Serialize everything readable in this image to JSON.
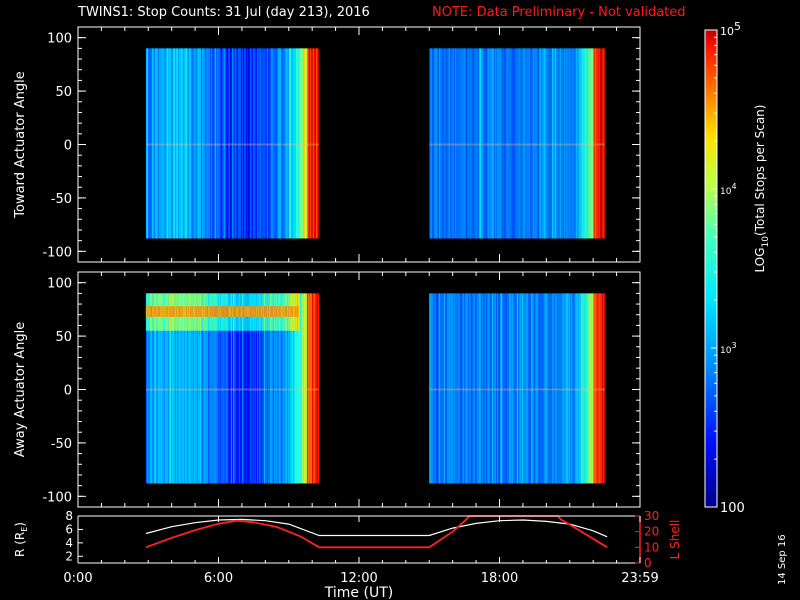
{
  "title": {
    "main": "TWINS1: Stop Counts: 31 Jul (day 213), 2016",
    "note": "NOTE: Data Preliminary - Not validated"
  },
  "stamp": "14 Sep 16",
  "colors": {
    "background": "#000000",
    "axes": "#ffffff",
    "note_red": "#ff1a1a",
    "l_shell_red": "#ff2020",
    "r_line_white": "#ffffff"
  },
  "chart_data": [
    {
      "type": "heatmap",
      "name": "toward",
      "ylabel": "Toward Actuator Angle",
      "ylim": [
        -110,
        110
      ],
      "yticks": [
        100,
        50,
        0,
        -50,
        -100
      ],
      "xlim": [
        0,
        24
      ],
      "data_y_range": [
        -88,
        90
      ],
      "data_x_ranges": [
        [
          2.9,
          10.3
        ],
        [
          15.0,
          22.5
        ]
      ],
      "description_values": "log10 stop counts rising with time in each block; ~2.7-3.2 early, ~4.6-5 at block end"
    },
    {
      "type": "heatmap",
      "name": "away",
      "ylabel": "Away Actuator Angle",
      "ylim": [
        -110,
        110
      ],
      "yticks": [
        100,
        50,
        0,
        -50,
        -100
      ],
      "xlim": [
        0,
        24
      ],
      "data_y_range": [
        -88,
        90
      ],
      "data_x_ranges": [
        [
          2.9,
          10.3
        ],
        [
          15.0,
          22.5
        ]
      ]
    },
    {
      "type": "colorbar",
      "label": "LOG10(Total Stops per Scan)",
      "label_parts": {
        "pre": "LOG",
        "sub": "10",
        "post": "(Total Stops per Scan)"
      },
      "scale": "log",
      "range": [
        100,
        100000
      ],
      "tick_labels": [
        {
          "value": 100000,
          "base": "10",
          "exp": "5"
        },
        {
          "value": 10000,
          "base": "10",
          "exp": "4"
        },
        {
          "value": 1000,
          "base": "10",
          "exp": "3"
        },
        {
          "value": 100,
          "text": "100"
        }
      ]
    },
    {
      "type": "line",
      "name": "orbit",
      "xlabel": "Time (UT)",
      "xlim": [
        0,
        24
      ],
      "xticks": [
        "0:00",
        "6:00",
        "12:00",
        "18:00",
        "23:59"
      ],
      "left_axis": {
        "label_parts": {
          "pre": "R (R",
          "sub": "E",
          "post": ")"
        },
        "ylim": [
          1,
          8
        ],
        "yticks": [
          "8",
          "6",
          "4",
          "2"
        ]
      },
      "right_axis": {
        "label": "L Shell",
        "ylim": [
          0,
          30
        ],
        "yticks": [
          "30",
          "20",
          "10",
          "0"
        ]
      },
      "series": [
        {
          "name": "R",
          "axis": "left",
          "color": "#ffffff",
          "x": [
            2.9,
            4.0,
            5.0,
            6.0,
            7.0,
            8.0,
            9.0,
            10.3,
            10.3,
            15.0,
            15.0,
            16.0,
            17.0,
            18.0,
            19.0,
            20.0,
            21.0,
            22.0,
            22.6
          ],
          "y": [
            5.4,
            6.4,
            7.0,
            7.4,
            7.5,
            7.3,
            6.8,
            5.1,
            5.1,
            5.1,
            5.1,
            6.2,
            6.9,
            7.3,
            7.4,
            7.2,
            6.8,
            5.8,
            4.9
          ]
        },
        {
          "name": "L Shell",
          "axis": "right",
          "color": "#ff2020",
          "x": [
            2.9,
            4.0,
            5.0,
            6.0,
            6.8,
            7.5,
            8.5,
            9.5,
            10.3,
            15.0,
            16.0,
            16.6,
            16.7,
            20.5,
            20.6,
            21.5,
            22.6
          ],
          "y": [
            10,
            16,
            21,
            25,
            27,
            26,
            23,
            17,
            10,
            10,
            20,
            28,
            30,
            30,
            28,
            20,
            10
          ]
        }
      ]
    }
  ]
}
